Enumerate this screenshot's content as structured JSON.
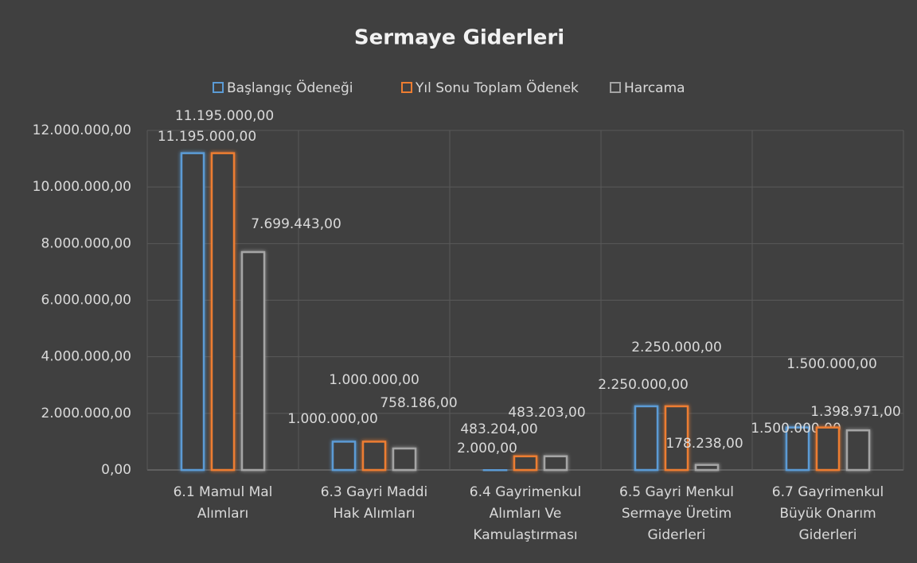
{
  "chart_data": {
    "type": "bar",
    "title": "Sermaye Giderleri",
    "categories": [
      "6.1 Mamul Mal Alımları",
      "6.3 Gayri Maddi Hak Alımları",
      "6.4 Gayrimenkul Alımları Ve Kamulaştırması",
      "6.5 Gayri Menkul Sermaye Üretim Giderleri",
      "6.7 Gayrimenkul Büyük Onarım Giderleri"
    ],
    "series": [
      {
        "name": "Başlangıç Ödeneği",
        "color": "#5b9bd5",
        "values": [
          11195000,
          1000000,
          2000,
          2250000,
          1500000
        ],
        "value_labels": [
          "11.195.000,00",
          "1.000.000,00",
          "2.000,00",
          "2.250.000,00",
          "1.500.000,00"
        ]
      },
      {
        "name": "Yıl Sonu Toplam Ödenek",
        "color": "#ed7d31",
        "values": [
          11195000,
          1000000,
          483204,
          2250000,
          1500000
        ],
        "value_labels": [
          "11.195.000,00",
          "1.000.000,00",
          "483.204,00",
          "2.250.000,00",
          "1.500.000,00"
        ]
      },
      {
        "name": "Harcama",
        "color": "#a5a5a5",
        "values": [
          7699443,
          758186,
          483203,
          178238,
          1398971
        ],
        "value_labels": [
          "7.699.443,00",
          "758.186,00",
          "483.203,00",
          "178.238,00",
          "1.398.971,00"
        ]
      }
    ],
    "ylim": [
      0,
      12000000
    ],
    "yticks": [
      {
        "value": 0,
        "label": "0,00"
      },
      {
        "value": 2000000,
        "label": "2.000.000,00"
      },
      {
        "value": 4000000,
        "label": "4.000.000,00"
      },
      {
        "value": 6000000,
        "label": "6.000.000,00"
      },
      {
        "value": 8000000,
        "label": "8.000.000,00"
      },
      {
        "value": 10000000,
        "label": "10.000.000,00"
      },
      {
        "value": 12000000,
        "label": "12.000.000,00"
      }
    ],
    "grid": true,
    "legend": "top"
  }
}
